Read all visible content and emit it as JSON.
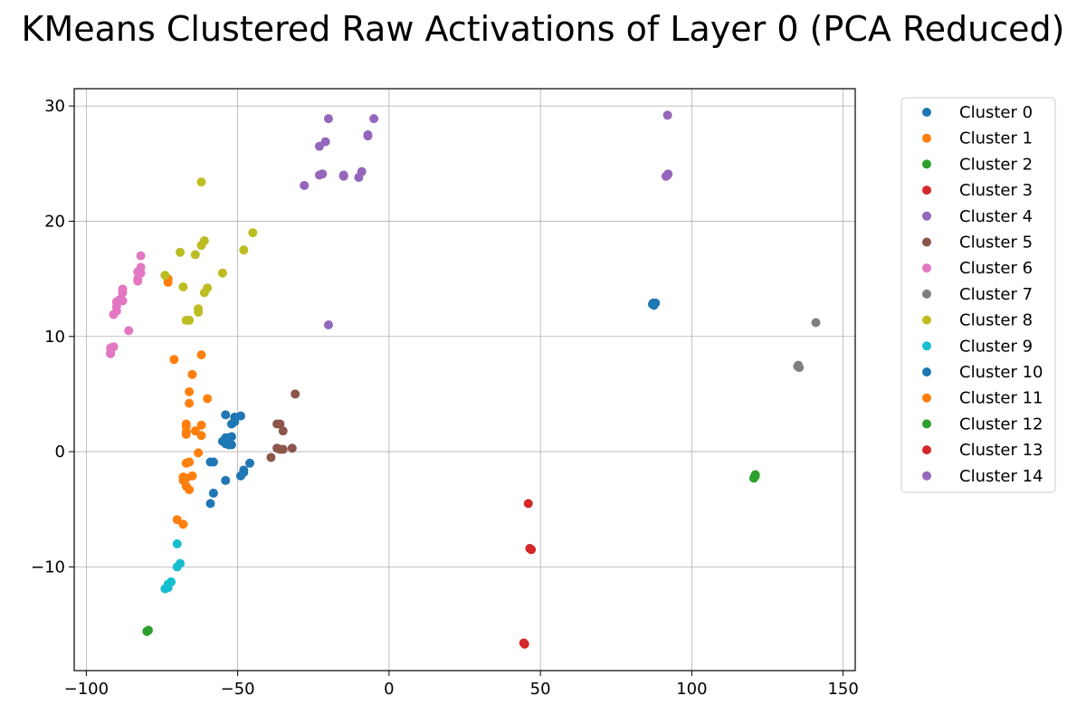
{
  "chart_data": {
    "type": "scatter",
    "title": "KMeans Clustered Raw Activations of Layer 0 (PCA Reduced)",
    "xlabel": "",
    "ylabel": "",
    "xlim": [
      -104,
      154
    ],
    "ylim": [
      -19,
      31.5
    ],
    "x_ticks": [
      -100,
      -50,
      0,
      50,
      100,
      150
    ],
    "y_ticks": [
      -10,
      0,
      10,
      20,
      30
    ],
    "grid": true,
    "legend_position": "outside-right",
    "series": [
      {
        "name": "Cluster 0",
        "color": "#1f77b4",
        "points": [
          [
            -54,
            0.7
          ],
          [
            -53,
            1.0
          ],
          [
            -52,
            1.3
          ],
          [
            -54,
            1.2
          ],
          [
            -52,
            0.6
          ],
          [
            -53,
            0.6
          ],
          [
            -54,
            3.2
          ],
          [
            -51,
            3.0
          ],
          [
            -49,
            3.1
          ],
          [
            -52,
            2.4
          ],
          [
            -51,
            2.6
          ],
          [
            -58,
            -0.9
          ],
          [
            -59,
            -0.9
          ],
          [
            -49,
            -2.1
          ],
          [
            -48,
            -1.8
          ],
          [
            -48,
            -1.6
          ],
          [
            -46,
            -1.0
          ],
          [
            -54,
            -2.5
          ],
          [
            -58,
            -3.6
          ],
          [
            -59,
            -4.5
          ],
          [
            -55,
            0.9
          ],
          [
            -53,
            1.2
          ]
        ]
      },
      {
        "name": "Cluster 1",
        "color": "#ff7f0e",
        "points": [
          [
            -73,
            14.7
          ],
          [
            -73,
            15.0
          ],
          [
            -71,
            8.0
          ],
          [
            -62,
            8.4
          ],
          [
            -65,
            6.7
          ],
          [
            -66,
            5.2
          ],
          [
            -60,
            4.6
          ],
          [
            -66,
            4.2
          ],
          [
            -67,
            2.4
          ],
          [
            -67,
            2.2
          ],
          [
            -62,
            2.3
          ],
          [
            -67,
            1.7
          ],
          [
            -64,
            1.8
          ],
          [
            -62,
            1.4
          ],
          [
            -67,
            1.5
          ],
          [
            -63,
            -0.1
          ],
          [
            -67,
            -1.0
          ],
          [
            -66,
            -0.9
          ],
          [
            -68,
            -2.2
          ],
          [
            -67,
            -2.3
          ],
          [
            -65,
            -2.1
          ],
          [
            -68,
            -2.5
          ],
          [
            -66,
            -3.3
          ],
          [
            -67,
            -3.0
          ],
          [
            -70,
            -5.9
          ],
          [
            -68,
            -6.3
          ]
        ]
      },
      {
        "name": "Cluster 2",
        "color": "#2ca02c",
        "points": [
          [
            121,
            -2.0
          ],
          [
            120.5,
            -2.3
          ],
          [
            121,
            -2.1
          ],
          [
            120.7,
            -2.2
          ]
        ]
      },
      {
        "name": "Cluster 3",
        "color": "#d62728",
        "points": [
          [
            46,
            -4.5
          ],
          [
            47,
            -8.5
          ],
          [
            46.5,
            -8.4
          ]
        ]
      },
      {
        "name": "Cluster 4",
        "color": "#9467bd",
        "points": [
          [
            -20,
            28.9
          ],
          [
            -5,
            28.9
          ],
          [
            -7,
            27.5
          ],
          [
            -21,
            26.9
          ],
          [
            -23,
            26.5
          ],
          [
            -9,
            24.3
          ],
          [
            -15,
            24.0
          ],
          [
            -15,
            23.9
          ],
          [
            -10,
            23.8
          ],
          [
            -22,
            24.1
          ],
          [
            -23,
            24.0
          ],
          [
            -28,
            23.1
          ],
          [
            -20,
            11.0
          ],
          [
            -7,
            27.4
          ]
        ]
      },
      {
        "name": "Cluster 5",
        "color": "#8c564b",
        "points": [
          [
            -31,
            5.0
          ],
          [
            -37,
            2.4
          ],
          [
            -36,
            2.4
          ],
          [
            -35,
            1.8
          ],
          [
            -36,
            0.2
          ],
          [
            -35,
            0.2
          ],
          [
            -37,
            0.3
          ],
          [
            -32,
            0.3
          ],
          [
            -39,
            -0.5
          ]
        ]
      },
      {
        "name": "Cluster 6",
        "color": "#e377c2",
        "points": [
          [
            -82,
            17.0
          ],
          [
            -82,
            16.0
          ],
          [
            -83,
            15.6
          ],
          [
            -82,
            15.5
          ],
          [
            -83,
            15.0
          ],
          [
            -83,
            14.8
          ],
          [
            -88,
            14.1
          ],
          [
            -88,
            13.8
          ],
          [
            -89,
            13.2
          ],
          [
            -88,
            13.1
          ],
          [
            -90,
            13.0
          ],
          [
            -90,
            12.6
          ],
          [
            -90,
            12.2
          ],
          [
            -91,
            11.9
          ],
          [
            -86,
            10.5
          ],
          [
            -92,
            9.0
          ],
          [
            -91,
            9.1
          ],
          [
            -92,
            8.6
          ],
          [
            -92,
            8.5
          ]
        ]
      },
      {
        "name": "Cluster 7",
        "color": "#7f7f7f",
        "points": [
          [
            141,
            11.2
          ],
          [
            135,
            7.4
          ],
          [
            135.5,
            7.3
          ],
          [
            135.2,
            7.5
          ]
        ]
      },
      {
        "name": "Cluster 8",
        "color": "#bcbd22",
        "points": [
          [
            -62,
            23.4
          ],
          [
            -45,
            19.0
          ],
          [
            -61,
            18.3
          ],
          [
            -62,
            17.9
          ],
          [
            -69,
            17.3
          ],
          [
            -64,
            17.1
          ],
          [
            -48,
            17.5
          ],
          [
            -55,
            15.5
          ],
          [
            -74,
            15.3
          ],
          [
            -68,
            14.3
          ],
          [
            -60,
            14.2
          ],
          [
            -61,
            13.8
          ],
          [
            -63,
            12.4
          ],
          [
            -63,
            12.1
          ],
          [
            -67,
            11.4
          ],
          [
            -66,
            11.4
          ]
        ]
      },
      {
        "name": "Cluster 9",
        "color": "#17becf",
        "points": [
          [
            -70,
            -8.0
          ],
          [
            -69,
            -9.7
          ],
          [
            -70,
            -10.0
          ],
          [
            -72,
            -11.3
          ],
          [
            -73,
            -11.5
          ],
          [
            -74,
            -11.9
          ],
          [
            -73,
            -11.8
          ]
        ]
      },
      {
        "name": "Cluster 10",
        "color": "#1f77b4",
        "points": [
          [
            87,
            12.8
          ],
          [
            88,
            12.9
          ],
          [
            87.5,
            12.7
          ],
          [
            87.3,
            12.9
          ]
        ]
      },
      {
        "name": "Cluster 11",
        "color": "#ff7f0e",
        "points": []
      },
      {
        "name": "Cluster 12",
        "color": "#2ca02c",
        "points": [
          [
            -80,
            -15.6
          ],
          [
            -79.5,
            -15.5
          ]
        ]
      },
      {
        "name": "Cluster 13",
        "color": "#d62728",
        "points": [
          [
            44.5,
            -16.6
          ],
          [
            44.8,
            -16.7
          ]
        ]
      },
      {
        "name": "Cluster 14",
        "color": "#9467bd",
        "points": [
          [
            92,
            29.2
          ],
          [
            92,
            24.0
          ],
          [
            91.5,
            23.9
          ],
          [
            92.2,
            24.1
          ]
        ]
      }
    ]
  }
}
